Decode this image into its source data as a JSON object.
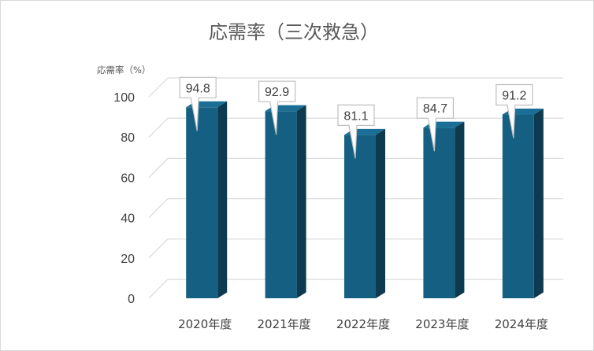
{
  "chart_data": {
    "type": "bar",
    "title": "応需率（三次救急）",
    "ylabel": "応需率（%）",
    "xlabel": "",
    "categories": [
      "2020年度",
      "2021年度",
      "2022年度",
      "2023年度",
      "2024年度"
    ],
    "series": [
      {
        "values": [
          94.8,
          92.9,
          81.1,
          84.7,
          91.2
        ]
      }
    ],
    "data_labels": [
      "94.8",
      "92.9",
      "81.1",
      "84.7",
      "91.2"
    ],
    "ylim": [
      0,
      100
    ],
    "yticks": [
      0,
      20,
      40,
      60,
      80,
      100
    ],
    "grid": true,
    "legend": "none",
    "style": "3d-column",
    "colors": {
      "bar_front": "#156082",
      "bar_side": "#0d3a4f",
      "bar_top": "#1b6f96",
      "grid": "#d9d9d9",
      "label_border": "#bfbfbf"
    }
  }
}
